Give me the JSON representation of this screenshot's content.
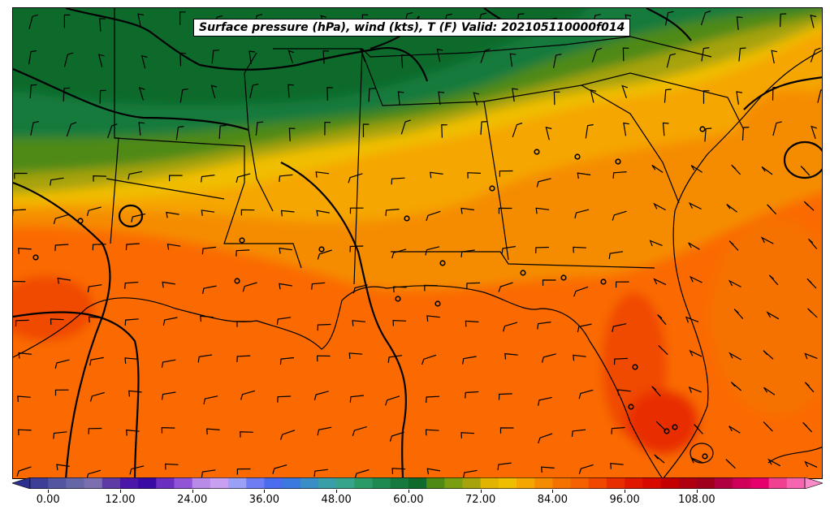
{
  "title": "Surface pressure (hPa), wind (kts), T (F) Valid: 202105110000f014",
  "colorbar": {
    "ticks": [
      "0.00",
      "12.00",
      "24.00",
      "36.00",
      "48.00",
      "60.00",
      "72.00",
      "84.00",
      "96.00",
      "108.00"
    ],
    "tick_values": [
      0,
      12,
      24,
      36,
      48,
      60,
      72,
      84,
      96,
      108
    ],
    "range": [
      -6,
      120
    ],
    "step": 3,
    "colors": [
      "#2b2f8f",
      "#3c3e98",
      "#5355a0",
      "#6665a8",
      "#7b6fb0",
      "#5e3aa6",
      "#4b17a8",
      "#3a0aa5",
      "#6a2fc0",
      "#9154d8",
      "#b98be8",
      "#c7a0f2",
      "#9aa0f5",
      "#6f7df5",
      "#4c6cf0",
      "#3b78e0",
      "#3a8ec8",
      "#3a9ea8",
      "#36a48a",
      "#2a9a66",
      "#1f8a50",
      "#167a3e",
      "#0f6b2c",
      "#4f8a14",
      "#7a9e12",
      "#a6a30c",
      "#e0b400",
      "#f0be00",
      "#f5a600",
      "#f58c00",
      "#f57200",
      "#f56000",
      "#f04800",
      "#e82e00",
      "#e01800",
      "#d80a00",
      "#c40000",
      "#b00010",
      "#a0001c",
      "#b00040",
      "#d0005a",
      "#e5006e",
      "#f04090",
      "#f565b0",
      "#f88cc8"
    ]
  },
  "map_layers": {
    "filled_contour": "surface temperature (F)",
    "line_contours": "surface pressure isobars (hPa)",
    "barbs": "wind barbs (kts)",
    "station_markers": "open circles"
  }
}
